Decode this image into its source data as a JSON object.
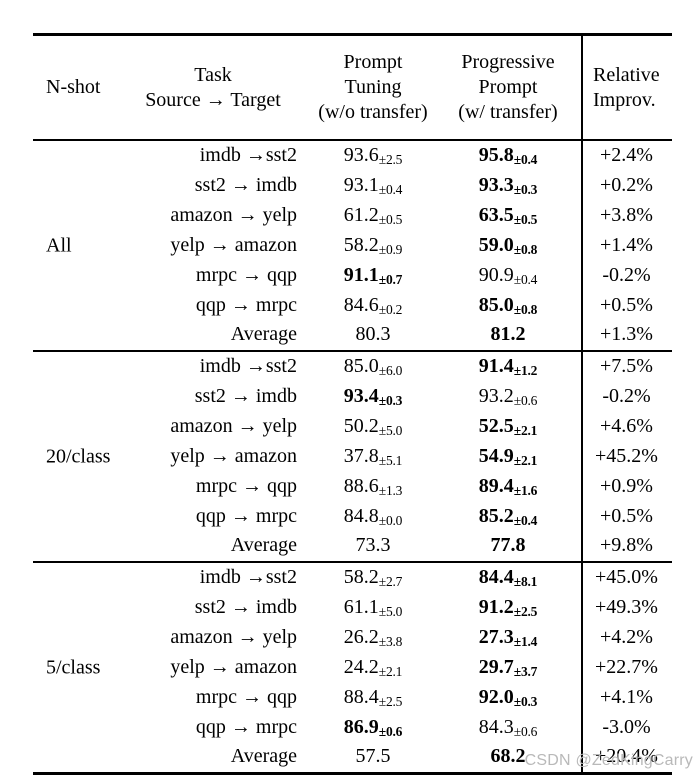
{
  "header": {
    "nshot": "N-shot",
    "task": [
      "Task",
      "Source → Target"
    ],
    "prompt_tuning": [
      "Prompt",
      "Tuning",
      "(w/o transfer)"
    ],
    "progressive_prompt": [
      "Progressive",
      "Prompt",
      "(w/ transfer)"
    ],
    "relative_improv": [
      "Relative",
      "Improv."
    ]
  },
  "groups": [
    {
      "label": "All",
      "rows": [
        {
          "task": "imdb →sst2",
          "pt": "93.6",
          "pt_sub": "±2.5",
          "pt_bold": false,
          "pp": "95.8",
          "pp_sub": "±0.4",
          "pp_bold": true,
          "rel": "+2.4%"
        },
        {
          "task": "sst2 → imdb",
          "pt": "93.1",
          "pt_sub": "±0.4",
          "pt_bold": false,
          "pp": "93.3",
          "pp_sub": "±0.3",
          "pp_bold": true,
          "rel": "+0.2%"
        },
        {
          "task": "amazon → yelp",
          "pt": "61.2",
          "pt_sub": "±0.5",
          "pt_bold": false,
          "pp": "63.5",
          "pp_sub": "±0.5",
          "pp_bold": true,
          "rel": "+3.8%"
        },
        {
          "task": "yelp → amazon",
          "pt": "58.2",
          "pt_sub": "±0.9",
          "pt_bold": false,
          "pp": "59.0",
          "pp_sub": "±0.8",
          "pp_bold": true,
          "rel": "+1.4%"
        },
        {
          "task": "mrpc → qqp",
          "pt": "91.1",
          "pt_sub": "±0.7",
          "pt_bold": true,
          "pp": "90.9",
          "pp_sub": "±0.4",
          "pp_bold": false,
          "rel": "-0.2%"
        },
        {
          "task": "qqp → mrpc",
          "pt": "84.6",
          "pt_sub": "±0.2",
          "pt_bold": false,
          "pp": "85.0",
          "pp_sub": "±0.8",
          "pp_bold": true,
          "rel": "+0.5%"
        },
        {
          "task": "Average",
          "pt": "80.3",
          "pt_sub": "",
          "pt_bold": false,
          "pp": "81.2",
          "pp_sub": "",
          "pp_bold": true,
          "rel": "+1.3%"
        }
      ]
    },
    {
      "label": "20/class",
      "rows": [
        {
          "task": "imdb →sst2",
          "pt": "85.0",
          "pt_sub": "±6.0",
          "pt_bold": false,
          "pp": "91.4",
          "pp_sub": "±1.2",
          "pp_bold": true,
          "rel": "+7.5%"
        },
        {
          "task": "sst2 → imdb",
          "pt": "93.4",
          "pt_sub": "±0.3",
          "pt_bold": true,
          "pp": "93.2",
          "pp_sub": "±0.6",
          "pp_bold": false,
          "rel": "-0.2%"
        },
        {
          "task": "amazon → yelp",
          "pt": "50.2",
          "pt_sub": "±5.0",
          "pt_bold": false,
          "pp": "52.5",
          "pp_sub": "±2.1",
          "pp_bold": true,
          "rel": "+4.6%"
        },
        {
          "task": "yelp → amazon",
          "pt": "37.8",
          "pt_sub": "±5.1",
          "pt_bold": false,
          "pp": "54.9",
          "pp_sub": "±2.1",
          "pp_bold": true,
          "rel": "+45.2%"
        },
        {
          "task": "mrpc → qqp",
          "pt": "88.6",
          "pt_sub": "±1.3",
          "pt_bold": false,
          "pp": "89.4",
          "pp_sub": "±1.6",
          "pp_bold": true,
          "rel": "+0.9%"
        },
        {
          "task": "qqp → mrpc",
          "pt": "84.8",
          "pt_sub": "±0.0",
          "pt_bold": false,
          "pp": "85.2",
          "pp_sub": "±0.4",
          "pp_bold": true,
          "rel": "+0.5%"
        },
        {
          "task": "Average",
          "pt": "73.3",
          "pt_sub": "",
          "pt_bold": false,
          "pp": "77.8",
          "pp_sub": "",
          "pp_bold": true,
          "rel": "+9.8%"
        }
      ]
    },
    {
      "label": "5/class",
      "rows": [
        {
          "task": "imdb →sst2",
          "pt": "58.2",
          "pt_sub": "±2.7",
          "pt_bold": false,
          "pp": "84.4",
          "pp_sub": "±8.1",
          "pp_bold": true,
          "rel": "+45.0%"
        },
        {
          "task": "sst2 → imdb",
          "pt": "61.1",
          "pt_sub": "±5.0",
          "pt_bold": false,
          "pp": "91.2",
          "pp_sub": "±2.5",
          "pp_bold": true,
          "rel": "+49.3%"
        },
        {
          "task": "amazon → yelp",
          "pt": "26.2",
          "pt_sub": "±3.8",
          "pt_bold": false,
          "pp": "27.3",
          "pp_sub": "±1.4",
          "pp_bold": true,
          "rel": "+4.2%"
        },
        {
          "task": "yelp → amazon",
          "pt": "24.2",
          "pt_sub": "±2.1",
          "pt_bold": false,
          "pp": "29.7",
          "pp_sub": "±3.7",
          "pp_bold": true,
          "rel": "+22.7%"
        },
        {
          "task": "mrpc → qqp",
          "pt": "88.4",
          "pt_sub": "±2.5",
          "pt_bold": false,
          "pp": "92.0",
          "pp_sub": "±0.3",
          "pp_bold": true,
          "rel": "+4.1%"
        },
        {
          "task": "qqp → mrpc",
          "pt": "86.9",
          "pt_sub": "±0.6",
          "pt_bold": true,
          "pp": "84.3",
          "pp_sub": "±0.6",
          "pp_bold": false,
          "rel": "-3.0%"
        },
        {
          "task": "Average",
          "pt": "57.5",
          "pt_sub": "",
          "pt_bold": false,
          "pp": "68.2",
          "pp_sub": "",
          "pp_bold": true,
          "rel": "+20.4%"
        }
      ]
    }
  ],
  "watermark": "CSDN @ZedKingCarry",
  "colors": {
    "text": "#000000",
    "rule": "#000000",
    "watermark": "#b9b9b9",
    "background": "#ffffff"
  }
}
